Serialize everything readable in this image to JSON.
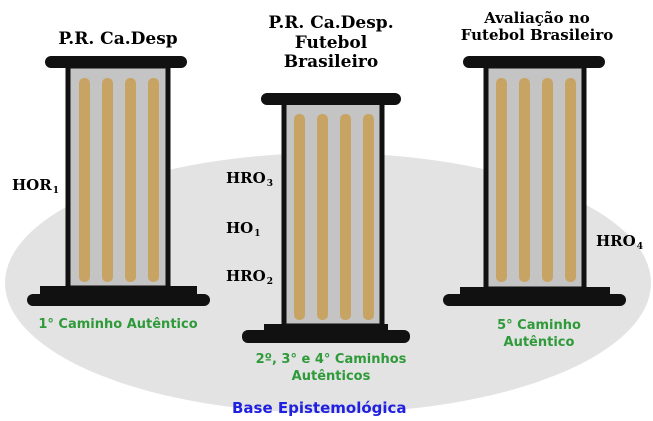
{
  "columns": [
    {
      "title": "P.R. Ca.Desp",
      "caption": [
        "1° Caminho  Autêntico"
      ]
    },
    {
      "title": [
        "P.R. Ca.Desp.",
        "Futebol",
        "Brasileiro"
      ],
      "caption": [
        "2º, 3° e 4° Caminhos",
        "Autênticos"
      ]
    },
    {
      "title": [
        "Avaliação no",
        "Futebol Brasileiro"
      ],
      "caption": [
        "5° Caminho",
        "Autêntico"
      ]
    }
  ],
  "side_labels": {
    "hor1": {
      "base": "HOR",
      "sub": "1"
    },
    "hro3": {
      "base": "HRO",
      "sub": "3"
    },
    "ho1": {
      "base": "HO",
      "sub": "1"
    },
    "hro2": {
      "base": "HRO",
      "sub": "2"
    },
    "hro4": {
      "base": "HRO",
      "sub": "4"
    }
  },
  "base_label": "Base Epistemológica",
  "colors": {
    "ellipse": "#e3e3e3",
    "column_body": "#c4c4c4",
    "column_stripe": "#c8a464",
    "caps": "#111111",
    "green_text": "#2f9a3a",
    "blue_text": "#2020e0"
  }
}
